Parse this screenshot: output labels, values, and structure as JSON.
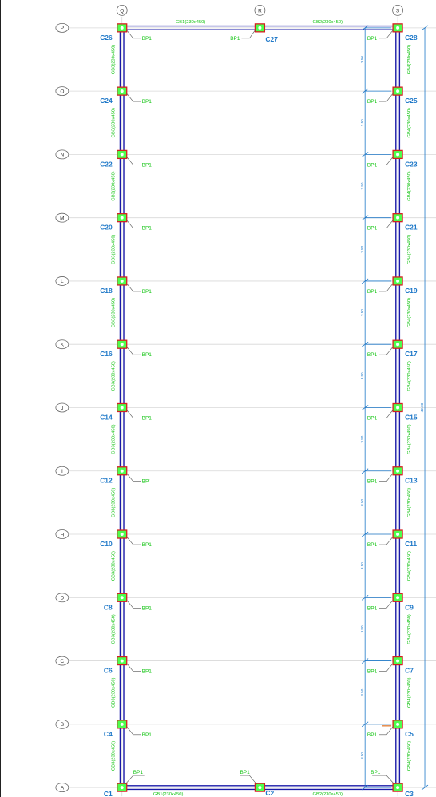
{
  "grid_x": [
    "Q",
    "R",
    "S"
  ],
  "grid_y": [
    "P",
    "O",
    "N",
    "M",
    "L",
    "K",
    "J",
    "I",
    "H",
    "D",
    "C",
    "B",
    "A"
  ],
  "columns_left": [
    "C26",
    "C24",
    "C22",
    "C20",
    "C18",
    "C16",
    "C14",
    "C12",
    "C10",
    "C8",
    "C6",
    "C4",
    "C1"
  ],
  "columns_right": [
    "C28",
    "C25",
    "C23",
    "C21",
    "C19",
    "C17",
    "C15",
    "C13",
    "C11",
    "C9",
    "C7",
    "C5",
    "C3"
  ],
  "column_top_mid": "C27",
  "column_bottom_mid": "C2",
  "pedestal_label": "BP1",
  "pedestal_label_alt": "BP'",
  "beam_top_left": "GB1(230x450)",
  "beam_top_right": "GB2(230x450)",
  "beam_bottom_left": "GB1(230x450)",
  "beam_bottom_right": "GB2(230x450)",
  "beam_left_vertical": "GB3(230x450)",
  "beam_right_vertical": "GB4(230x450)",
  "bay_dimension": "3.50",
  "overall_dimension": "42.00",
  "colors": {
    "beam": "#1a1aa8",
    "column_fill": "#4dff4d",
    "column_outline": "#d42020",
    "label_blue": "#1e78c8",
    "label_green": "#12c412"
  }
}
